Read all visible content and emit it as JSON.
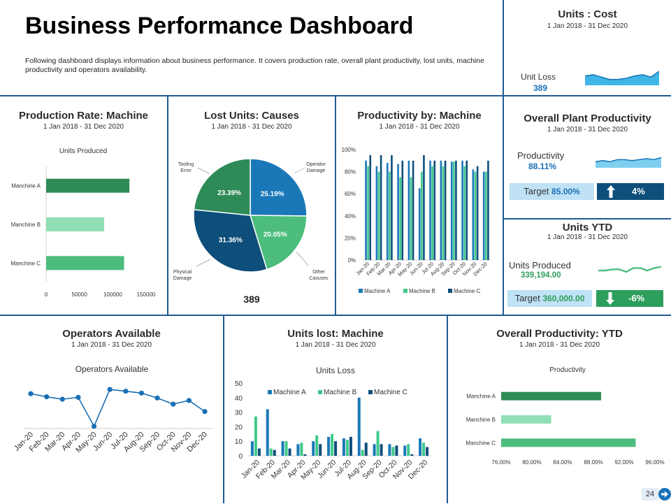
{
  "page": {
    "title": "Business Performance Dashboard",
    "description": "Following dashboard displays information about business performance. It covers production rate, overall plant productivity, lost units, machine productivity and operators availability.",
    "page_number": "24"
  },
  "colors": {
    "divider": "#1f5a94",
    "machine_a": "#2e8b57",
    "machine_b": "#90dfb5",
    "machine_c": "#4cbd7c",
    "prod_a": "#1a78b8",
    "prod_b": "#3fc98a",
    "prod_c": "#0d4e7a",
    "accent_blue": "#1a6fb5",
    "target_bg": "#bfe2f5",
    "kpi_dark": "#0d4e7a",
    "kpi_green": "#2e9e5c",
    "page_bg": "#ffffff"
  },
  "units_cost": {
    "title": "Units : Cost",
    "date": "1 Jan 2018 - 31 Dec 2020",
    "label": "Unit Loss",
    "value": "389"
  },
  "plant_productivity": {
    "title": "Overall Plant Productivity",
    "date": "1 Jan 2018 - 31 Dec 2020",
    "label": "Productivity",
    "value": "88.11%",
    "target_label": "Target",
    "target_value": "85.00%",
    "delta": "4%",
    "delta_icon": "arrow-up-icon"
  },
  "units_ytd": {
    "title": "Units YTD",
    "date": "1 Jan 2018 - 31 Dec 2020",
    "label": "Units Produced",
    "value": "339,194.00",
    "target_label": "Target",
    "target_value": "360,000.00",
    "delta": "-6%",
    "delta_icon": "arrow-down-icon"
  },
  "production_rate": {
    "title": "Production Rate: Machine",
    "date": "1 Jan 2018 - 31 Dec 2020"
  },
  "lost_units": {
    "title": "Lost Units: Causes",
    "date": "1 Jan 2018 - 31 Dec 2020",
    "total": "389"
  },
  "productivity_machine": {
    "title": "Productivity by: Machine",
    "date": "1 Jan 2018 - 31 Dec 2020"
  },
  "operators": {
    "title": "Operators Available",
    "date": "1 Jan 2018 - 31 Dec 2020"
  },
  "units_lost_machine": {
    "title": "Units lost: Machine",
    "date": "1 Jan 2018 - 31 Dec 2020"
  },
  "overall_productivity": {
    "title": "Overall Productivity: YTD",
    "date": "1 Jan 2018 - 31 Dec 2020"
  },
  "chart_data": [
    {
      "id": "production_rate",
      "type": "bar",
      "orientation": "horizontal",
      "title": "Units Produced",
      "categories": [
        "Manchine A",
        "Manchine B",
        "Manchine C"
      ],
      "values": [
        125000,
        87000,
        117000
      ],
      "xlim": [
        0,
        150000
      ],
      "xticks": [
        "0",
        "50000",
        "100000",
        "150000"
      ],
      "grid": false
    },
    {
      "id": "lost_units_pie",
      "type": "pie",
      "slices": [
        {
          "label": "Operator Damage",
          "value": 25.19,
          "display": "25.19%"
        },
        {
          "label": "Other Casuses",
          "value": 20.05,
          "display": "20.05%"
        },
        {
          "label": "Physical Damage",
          "value": 31.36,
          "display": "31.36%"
        },
        {
          "label": "Tooling Error",
          "value": 23.39,
          "display": "23.39%"
        }
      ]
    },
    {
      "id": "productivity_machine",
      "type": "bar",
      "categories": [
        "Jan-20",
        "Feb-20",
        "Mar-20",
        "Apr-20",
        "May-20",
        "Jun-20",
        "Jul-20",
        "Aug-20",
        "Sep-20",
        "Oct-20",
        "Nov-20",
        "Dec-20"
      ],
      "series": [
        {
          "name": "Machine A",
          "values": [
            90,
            85,
            88,
            87,
            90,
            65,
            90,
            90,
            89,
            90,
            82,
            80
          ]
        },
        {
          "name": "Machine B",
          "values": [
            85,
            80,
            80,
            75,
            75,
            80,
            85,
            85,
            89,
            85,
            80,
            80
          ]
        },
        {
          "name": "Machine C",
          "values": [
            95,
            95,
            95,
            90,
            90,
            95,
            90,
            90,
            90,
            90,
            85,
            90
          ]
        }
      ],
      "ylim": [
        0,
        100
      ],
      "yticks": [
        "0%",
        "20%",
        "40%",
        "60%",
        "80%",
        "100%"
      ],
      "legend": "bottom",
      "grid": false
    },
    {
      "id": "operators",
      "type": "line",
      "title": "Operators Available",
      "categories": [
        "Jan-20",
        "Feb-20",
        "Mar-20",
        "Apr-20",
        "May-20",
        "Jun-20",
        "Jul-20",
        "Aug-20",
        "Sep-20",
        "Oct-20",
        "Nov-20",
        "Dec-20"
      ],
      "values": [
        85,
        80,
        76,
        79,
        32,
        92,
        89,
        86,
        78,
        68,
        74,
        56
      ],
      "grid": false
    },
    {
      "id": "units_lost_machine",
      "type": "bar",
      "title": "Units Loss",
      "categories": [
        "Jan-20",
        "Feb-20",
        "Mar-20",
        "Apr-20",
        "May-20",
        "Jun-20",
        "Jul-20",
        "Aug-20",
        "Sep-20",
        "Oct-20",
        "Nov-20",
        "Dec-20"
      ],
      "series": [
        {
          "name": "Machine A",
          "values": [
            10,
            32,
            10,
            8,
            10,
            13,
            12,
            40,
            8,
            8,
            7,
            12
          ]
        },
        {
          "name": "Machine B",
          "values": [
            27,
            5,
            10,
            9,
            14,
            15,
            11,
            4,
            17,
            6,
            8,
            9
          ]
        },
        {
          "name": "Machine C",
          "values": [
            5,
            4,
            5,
            1,
            8,
            10,
            13,
            9,
            8,
            7,
            1,
            6
          ]
        }
      ],
      "ylim": [
        0,
        50
      ],
      "yticks": [
        "0",
        "10",
        "20",
        "30",
        "40",
        "50"
      ],
      "legend": "top",
      "grid": false
    },
    {
      "id": "overall_productivity",
      "type": "bar",
      "orientation": "horizontal",
      "title": "Productivity",
      "categories": [
        "Manchine A",
        "Manchine B",
        "Manchine C"
      ],
      "values": [
        89.0,
        82.5,
        93.5
      ],
      "xlim": [
        76,
        96
      ],
      "xticks": [
        "76.00%",
        "80.00%",
        "84.00%",
        "88.00%",
        "92.00%",
        "96.00%"
      ],
      "grid": false
    },
    {
      "id": "unit_loss_spark",
      "type": "area",
      "values": [
        8,
        9,
        7,
        5,
        5,
        6,
        8,
        9,
        7,
        12
      ]
    },
    {
      "id": "productivity_spark",
      "type": "area",
      "values": [
        6,
        7,
        6,
        8,
        8,
        7,
        8,
        9,
        8,
        10
      ]
    },
    {
      "id": "units_spark",
      "type": "line",
      "values": [
        6,
        6,
        7,
        7,
        5,
        8,
        8,
        6,
        8,
        9
      ]
    }
  ]
}
